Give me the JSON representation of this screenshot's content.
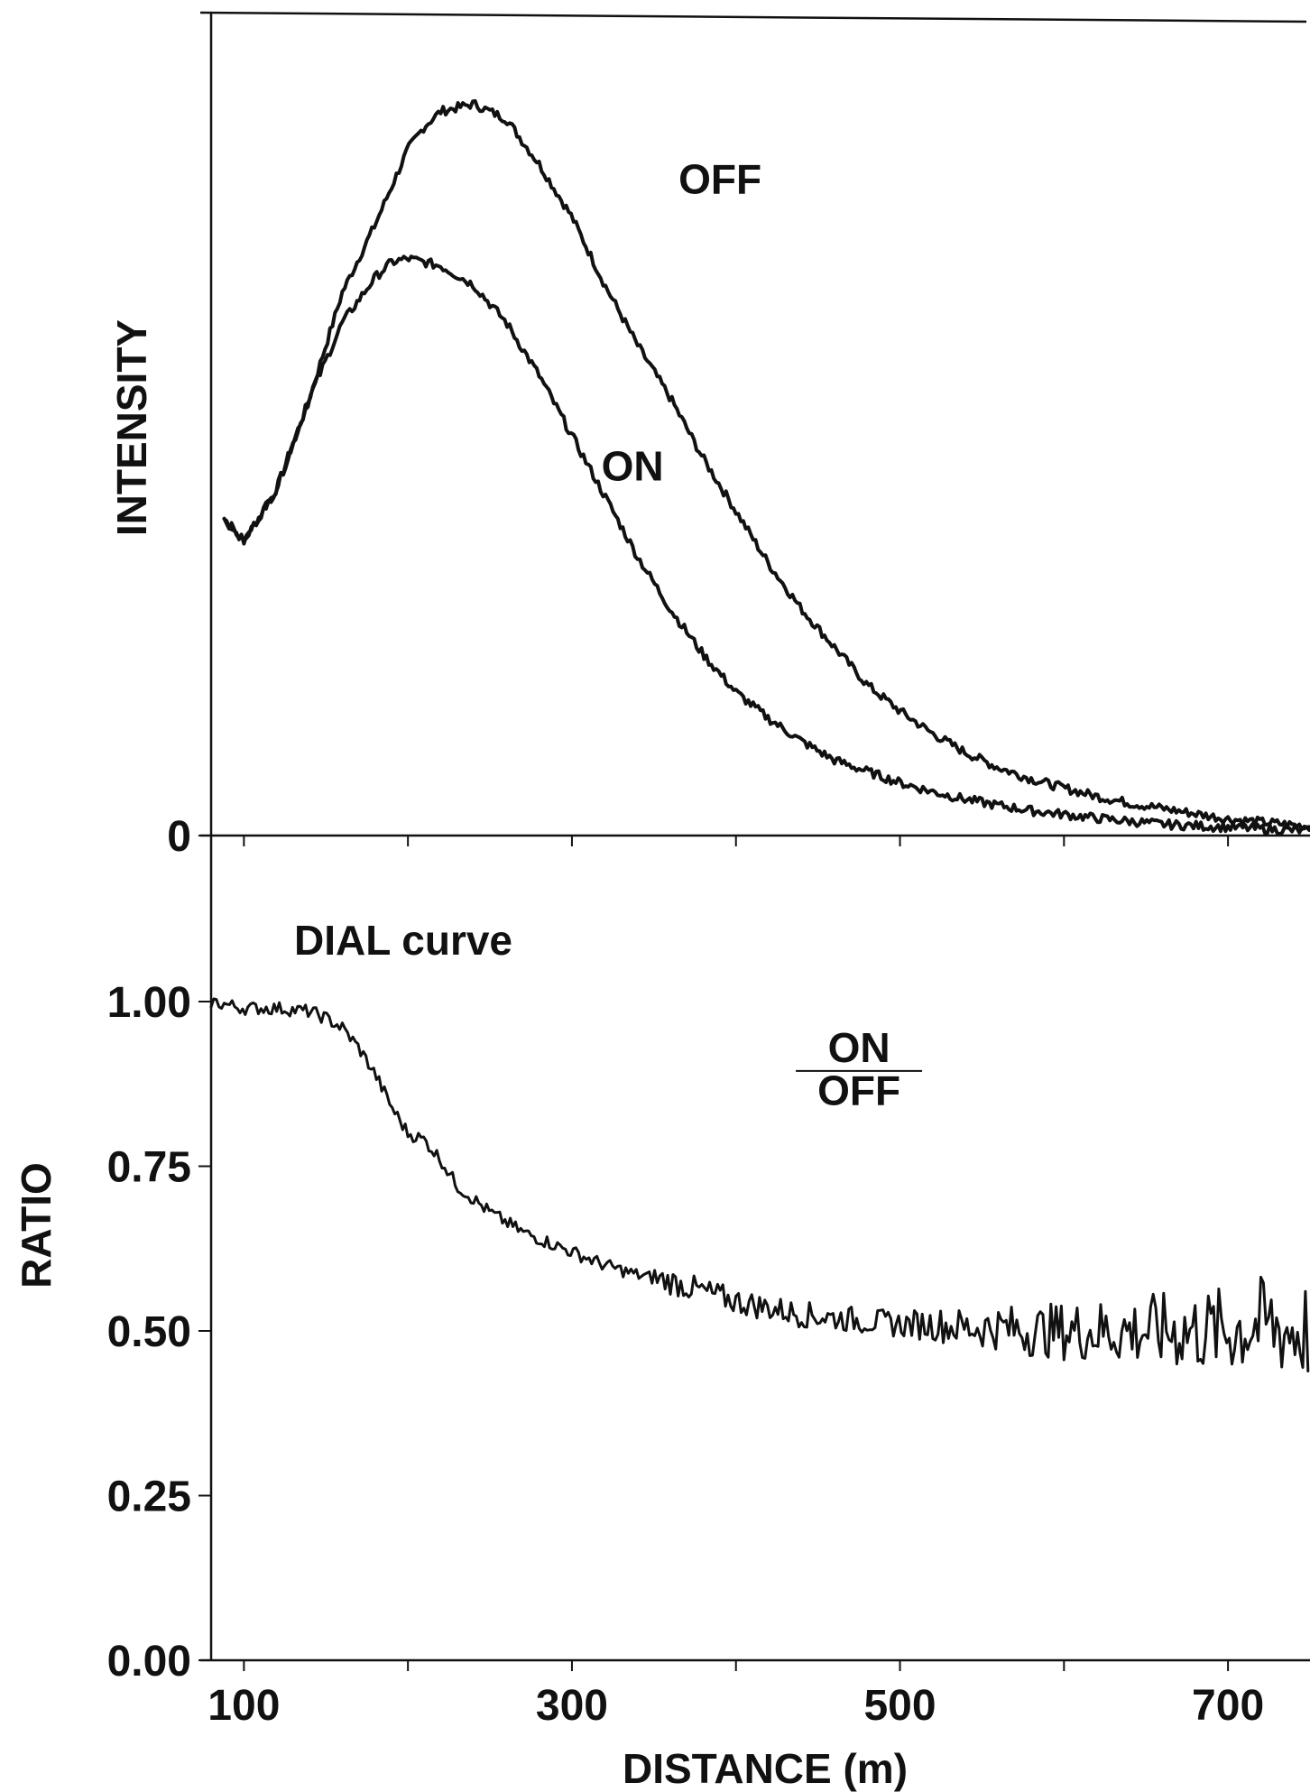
{
  "chart_data": [
    {
      "id": "intensity",
      "type": "line",
      "title": "",
      "xlabel": "",
      "ylabel": "INTENSITY",
      "xlim": [
        80,
        750
      ],
      "ylim": [
        0,
        1.0
      ],
      "y_ticks": [
        {
          "value": 0,
          "label": "0"
        }
      ],
      "annotations": [
        {
          "text": "OFF",
          "x": 365,
          "y": 0.87
        },
        {
          "text": "ON",
          "x": 318,
          "y": 0.49
        }
      ],
      "series": [
        {
          "name": "OFF",
          "x": [
            88,
            100,
            120,
            140,
            160,
            180,
            190,
            200,
            210,
            220,
            240,
            260,
            280,
            300,
            320,
            340,
            360,
            380,
            400,
            420,
            440,
            460,
            480,
            500,
            520,
            540,
            560,
            580,
            600,
            620,
            640,
            660,
            680,
            700,
            720,
            750
          ],
          "y": [
            0.42,
            0.39,
            0.46,
            0.58,
            0.72,
            0.81,
            0.86,
            0.91,
            0.94,
            0.96,
            0.97,
            0.95,
            0.89,
            0.82,
            0.73,
            0.65,
            0.58,
            0.5,
            0.43,
            0.36,
            0.3,
            0.25,
            0.2,
            0.165,
            0.135,
            0.11,
            0.09,
            0.075,
            0.063,
            0.052,
            0.043,
            0.036,
            0.029,
            0.022,
            0.018,
            0.012
          ]
        },
        {
          "name": "ON",
          "x": [
            88,
            100,
            120,
            140,
            160,
            180,
            190,
            200,
            210,
            220,
            240,
            260,
            280,
            300,
            320,
            340,
            360,
            380,
            400,
            420,
            440,
            460,
            480,
            500,
            520,
            540,
            560,
            580,
            600,
            620,
            640,
            660,
            680,
            700,
            720,
            750
          ],
          "y": [
            0.42,
            0.39,
            0.46,
            0.58,
            0.68,
            0.74,
            0.76,
            0.765,
            0.76,
            0.755,
            0.73,
            0.68,
            0.61,
            0.53,
            0.45,
            0.37,
            0.3,
            0.24,
            0.19,
            0.155,
            0.125,
            0.1,
            0.085,
            0.07,
            0.058,
            0.048,
            0.04,
            0.033,
            0.028,
            0.023,
            0.019,
            0.015,
            0.013,
            0.011,
            0.009,
            0.006
          ]
        }
      ]
    },
    {
      "id": "ratio",
      "type": "line",
      "title": "DIAL curve",
      "xlabel": "DISTANCE (m)",
      "ylabel": "RATIO",
      "xlim": [
        80,
        750
      ],
      "ylim": [
        0,
        1.0
      ],
      "x_ticks": [
        100,
        300,
        500,
        700
      ],
      "x_minor_ticks": [
        200,
        400,
        600
      ],
      "y_ticks": [
        {
          "value": 0.0,
          "label": "0.00"
        },
        {
          "value": 0.25,
          "label": "0.25"
        },
        {
          "value": 0.5,
          "label": "0.50"
        },
        {
          "value": 0.75,
          "label": "0.75"
        },
        {
          "value": 1.0,
          "label": "1.00"
        }
      ],
      "annotations": [
        {
          "text": "ON",
          "x": 475,
          "y": 0.93
        },
        {
          "text": "OFF",
          "x": 475,
          "y": 0.865
        }
      ],
      "series": [
        {
          "name": "",
          "x": [
            80,
            100,
            120,
            140,
            150,
            160,
            170,
            180,
            190,
            200,
            210,
            220,
            230,
            240,
            250,
            260,
            270,
            280,
            290,
            300,
            320,
            340,
            360,
            380,
            400,
            420,
            440,
            460,
            480,
            500,
            520,
            540,
            560,
            580,
            600,
            620,
            640,
            660,
            680,
            700,
            720,
            740,
            750
          ],
          "y": [
            1.0,
            0.99,
            0.99,
            0.985,
            0.975,
            0.96,
            0.93,
            0.89,
            0.84,
            0.8,
            0.79,
            0.76,
            0.72,
            0.7,
            0.68,
            0.665,
            0.65,
            0.64,
            0.63,
            0.62,
            0.6,
            0.585,
            0.575,
            0.56,
            0.545,
            0.535,
            0.525,
            0.52,
            0.515,
            0.51,
            0.51,
            0.505,
            0.505,
            0.5,
            0.5,
            0.5,
            0.5,
            0.5,
            0.5,
            0.5,
            0.51,
            0.5,
            0.5
          ]
        }
      ]
    }
  ]
}
